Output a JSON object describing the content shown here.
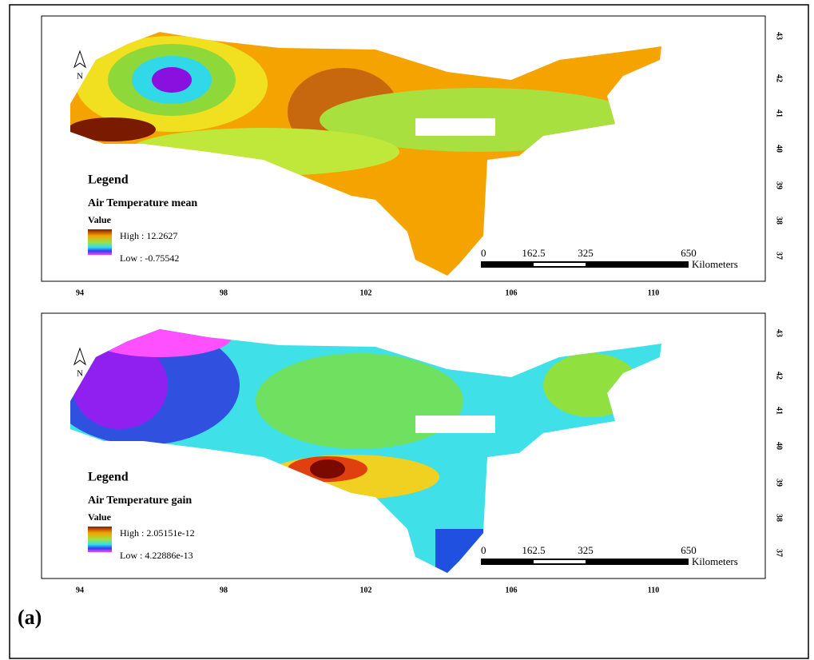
{
  "panels": [
    {
      "north": "N",
      "legend_title": "Legend",
      "variable": "Air Temperature mean",
      "value_label": "Value",
      "high": "High : 12.2627",
      "low": "Low : -0.75542",
      "lon_labels": [
        "94",
        "98",
        "102",
        "106",
        "110"
      ],
      "lat_labels": [
        "43",
        "42",
        "41",
        "40",
        "39",
        "38",
        "37"
      ],
      "scale_labels": [
        "0",
        "162.5",
        "325",
        "650"
      ],
      "scale_unit": "Kilometers"
    },
    {
      "north": "N",
      "legend_title": "Legend",
      "variable": "Air Temperature gain",
      "value_label": "Value",
      "high": "High : 2.05151e-12",
      "low": "Low : 4.22886e-13",
      "lon_labels": [
        "94",
        "98",
        "102",
        "106",
        "110"
      ],
      "lat_labels": [
        "43",
        "42",
        "41",
        "40",
        "39",
        "38",
        "37"
      ],
      "scale_labels": [
        "0",
        "162.5",
        "325",
        "650"
      ],
      "scale_unit": "Kilometers"
    }
  ],
  "figure_label": "(a)"
}
